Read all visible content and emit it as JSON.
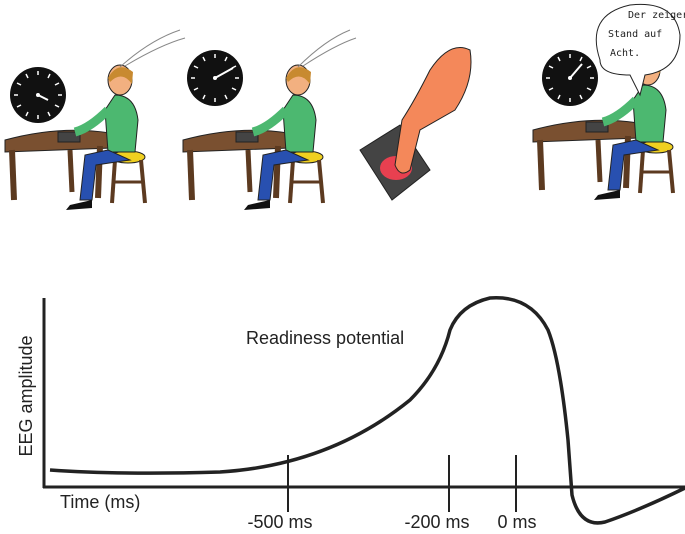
{
  "speech_bubble": [
    "Der zeiger",
    "Stand auf",
    "Acht."
  ],
  "graph": {
    "y_axis_label": "EEG amplitude",
    "x_axis_label": "Time (ms)",
    "curve_label": "Readiness potential",
    "time_markers": [
      "-500 ms",
      "-200 ms",
      "0 ms"
    ]
  }
}
